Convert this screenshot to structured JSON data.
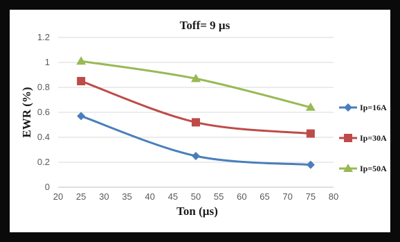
{
  "chart_data": {
    "type": "line",
    "title": "Toff= 9 µs",
    "xlabel": "Ton (µs)",
    "ylabel": "EWR (%)",
    "xlim": [
      20,
      80
    ],
    "ylim": [
      0,
      1.2
    ],
    "xticks": [
      20,
      25,
      30,
      35,
      40,
      45,
      50,
      55,
      60,
      65,
      70,
      75,
      80
    ],
    "yticks": [
      0,
      0.2,
      0.4,
      0.6,
      0.8,
      1,
      1.2
    ],
    "x": [
      25,
      50,
      75
    ],
    "grid": "horizontal",
    "legend_position": "right",
    "series": [
      {
        "name": "Ip=16A",
        "values": [
          0.57,
          0.25,
          0.18
        ],
        "color": "#4a7ebb",
        "marker": "diamond"
      },
      {
        "name": "Ip=30A",
        "values": [
          0.85,
          0.52,
          0.43
        ],
        "color": "#be4b48",
        "marker": "square"
      },
      {
        "name": "Ip=50A",
        "values": [
          1.01,
          0.87,
          0.64
        ],
        "color": "#98b954",
        "marker": "triangle"
      }
    ]
  }
}
